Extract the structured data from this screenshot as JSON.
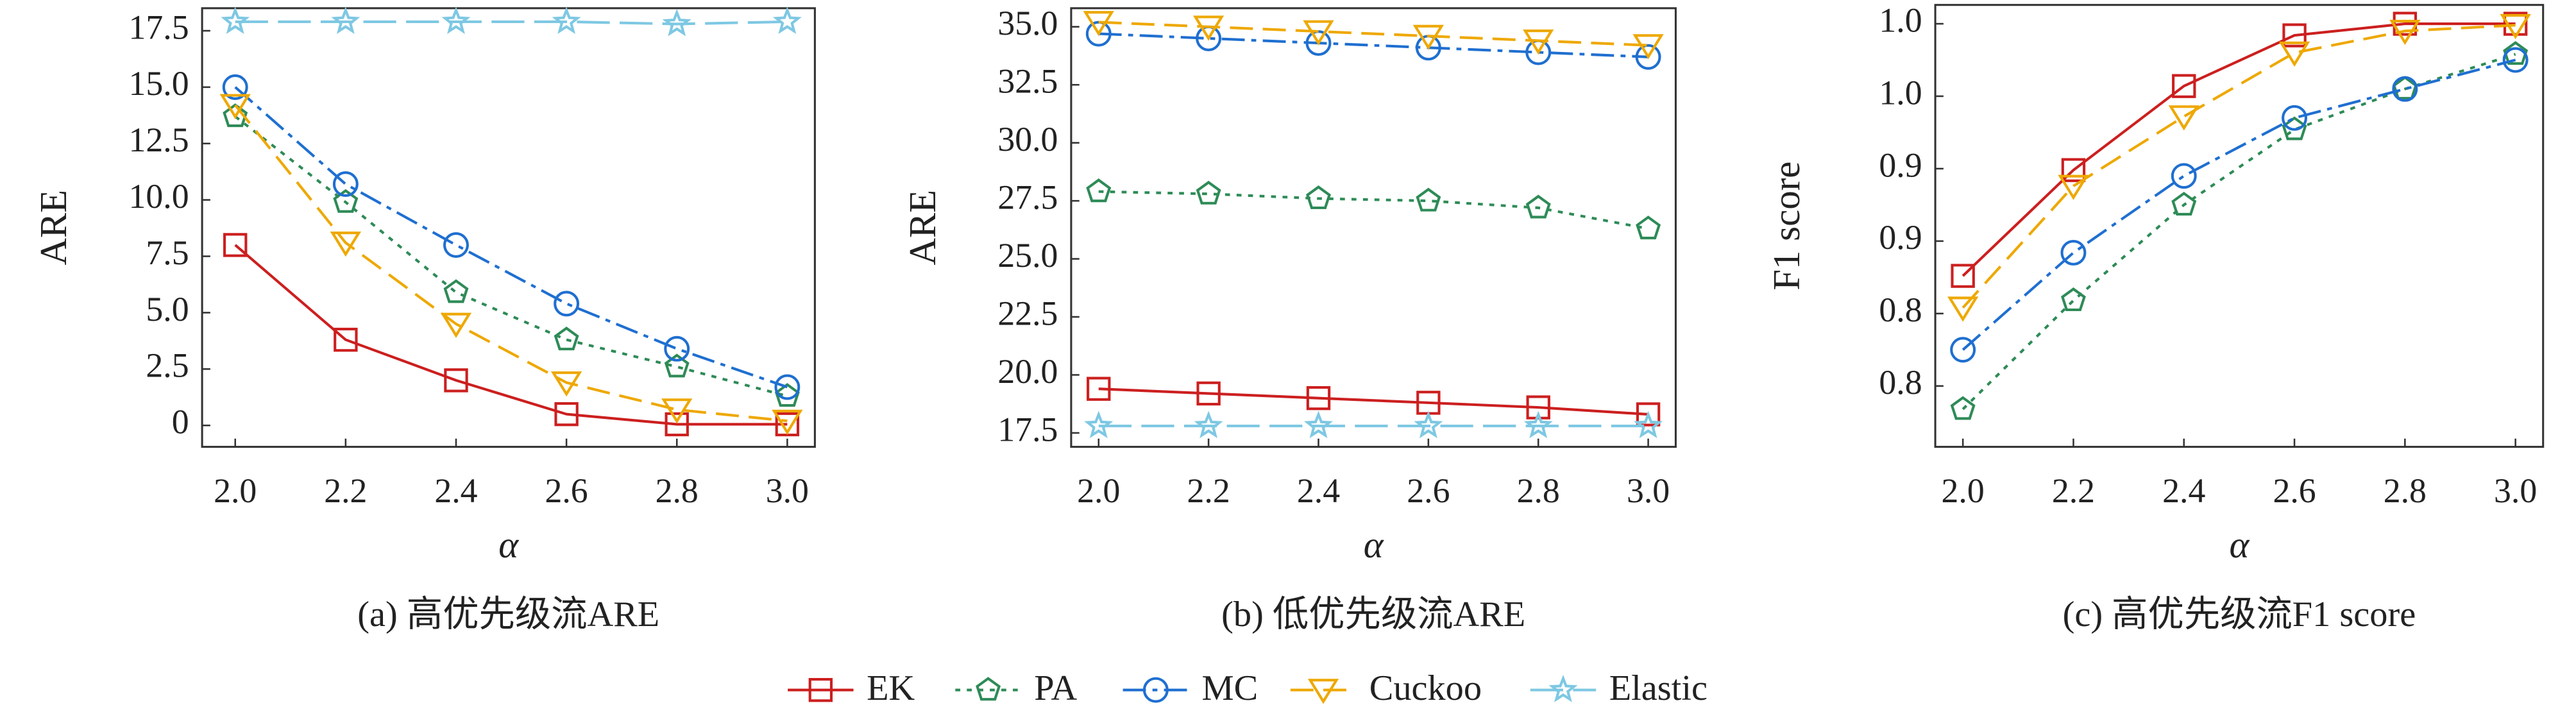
{
  "chart_data": [
    {
      "type": "line",
      "caption": "(a) 高优先级流ARE",
      "ylabel": "ARE",
      "xlabel": "α",
      "x": [
        2.0,
        2.2,
        2.4,
        2.6,
        2.8,
        3.0
      ],
      "xlim": [
        1.94,
        3.05
      ],
      "xticks": [
        {
          "value": 2.0,
          "label": "2.0"
        },
        {
          "value": 2.2,
          "label": "2.2"
        },
        {
          "value": 2.4,
          "label": "2.4"
        },
        {
          "value": 2.6,
          "label": "2.6"
        },
        {
          "value": 2.8,
          "label": "2.8"
        },
        {
          "value": 3.0,
          "label": "3.0"
        }
      ],
      "ylim": [
        -0.95,
        18.5
      ],
      "yticks": [
        0,
        2.5,
        {
          "value": 5,
          "label": "5.0"
        },
        7.5,
        {
          "value": 10,
          "label": "10.0"
        },
        12.5,
        {
          "value": 15,
          "label": "15.0"
        },
        17.5
      ],
      "series": [
        {
          "name": "EK",
          "color": "#cc1f1f",
          "linestyle": "solid",
          "marker": "square",
          "values": [
            8.0,
            3.8,
            2.0,
            0.5,
            0.05,
            0.05
          ]
        },
        {
          "name": "PA",
          "color": "#2e8b57",
          "linestyle": "dotted",
          "marker": "pentagon",
          "values": [
            13.7,
            9.9,
            5.9,
            3.8,
            2.6,
            1.3
          ]
        },
        {
          "name": "MC",
          "color": "#1f6fd0",
          "linestyle": "dashdot",
          "marker": "circle",
          "values": [
            15.0,
            10.7,
            8.0,
            5.4,
            3.4,
            1.7
          ]
        },
        {
          "name": "Cuckoo",
          "color": "#eea800",
          "linestyle": "dashed",
          "marker": "triangle-down",
          "values": [
            14.2,
            8.1,
            4.5,
            1.9,
            0.7,
            0.2
          ]
        },
        {
          "name": "Elastic",
          "color": "#7ec8e3",
          "linestyle": "longdash",
          "marker": "star",
          "values": [
            17.9,
            17.9,
            17.9,
            17.9,
            17.8,
            17.9
          ]
        }
      ]
    },
    {
      "type": "line",
      "caption": "(b) 低优先级流ARE",
      "ylabel": "ARE",
      "xlabel": "α",
      "x": [
        2.0,
        2.2,
        2.4,
        2.6,
        2.8,
        3.0
      ],
      "xlim": [
        1.95,
        3.05
      ],
      "xticks": [
        {
          "value": 2.0,
          "label": "2.0"
        },
        {
          "value": 2.2,
          "label": "2.2"
        },
        {
          "value": 2.4,
          "label": "2.4"
        },
        {
          "value": 2.6,
          "label": "2.6"
        },
        {
          "value": 2.8,
          "label": "2.8"
        },
        {
          "value": 3.0,
          "label": "3.0"
        }
      ],
      "ylim": [
        16.9,
        35.8
      ],
      "yticks": [
        17.5,
        {
          "value": 20,
          "label": "20.0"
        },
        22.5,
        {
          "value": 25,
          "label": "25.0"
        },
        27.5,
        {
          "value": 30,
          "label": "30.0"
        },
        32.5,
        {
          "value": 35,
          "label": "35.0"
        }
      ],
      "series": [
        {
          "name": "EK",
          "color": "#cc1f1f",
          "linestyle": "solid",
          "marker": "square",
          "values": [
            19.4,
            19.2,
            19.0,
            18.8,
            18.6,
            18.3
          ]
        },
        {
          "name": "PA",
          "color": "#2e8b57",
          "linestyle": "dotted",
          "marker": "pentagon",
          "values": [
            27.9,
            27.8,
            27.6,
            27.5,
            27.2,
            26.3
          ]
        },
        {
          "name": "MC",
          "color": "#1f6fd0",
          "linestyle": "dashdot",
          "marker": "circle",
          "values": [
            34.7,
            34.5,
            34.3,
            34.1,
            33.9,
            33.7
          ]
        },
        {
          "name": "Cuckoo",
          "color": "#eea800",
          "linestyle": "dashed",
          "marker": "triangle-down",
          "values": [
            35.2,
            35.0,
            34.8,
            34.6,
            34.4,
            34.2
          ]
        },
        {
          "name": "Elastic",
          "color": "#7ec8e3",
          "linestyle": "longdash",
          "marker": "star",
          "values": [
            17.8,
            17.8,
            17.8,
            17.8,
            17.8,
            17.8
          ]
        }
      ]
    },
    {
      "type": "line",
      "caption": "(c) 高优先级流F1 score",
      "ylabel": "F1 score",
      "xlabel": "α",
      "x": [
        2.0,
        2.2,
        2.4,
        2.6,
        2.8,
        3.0
      ],
      "xlim": [
        1.95,
        3.05
      ],
      "xticks": [
        {
          "value": 2.0,
          "label": "2.0"
        },
        {
          "value": 2.2,
          "label": "2.2"
        },
        {
          "value": 2.4,
          "label": "2.4"
        },
        {
          "value": 2.6,
          "label": "2.6"
        },
        {
          "value": 2.8,
          "label": "2.8"
        },
        {
          "value": 3.0,
          "label": "3.0"
        }
      ],
      "ylim": [
        0.708,
        1.013
      ],
      "yticks": [
        {
          "value": 0.75,
          "label": "0.8"
        },
        {
          "value": 0.8,
          "label": "0.8"
        },
        {
          "value": 0.85,
          "label": "0.9"
        },
        {
          "value": 0.9,
          "label": "0.9"
        },
        {
          "value": 0.95,
          "label": "1.0"
        },
        {
          "value": 1.0,
          "label": "1.0"
        }
      ],
      "series": [
        {
          "name": "EK",
          "color": "#cc1f1f",
          "linestyle": "solid",
          "marker": "square",
          "values": [
            0.826,
            0.899,
            0.957,
            0.992,
            1.0,
            1.0
          ]
        },
        {
          "name": "PA",
          "color": "#2e8b57",
          "linestyle": "dotted",
          "marker": "pentagon",
          "values": [
            0.734,
            0.809,
            0.875,
            0.927,
            0.955,
            0.979
          ]
        },
        {
          "name": "MC",
          "color": "#1f6fd0",
          "linestyle": "dashdot",
          "marker": "circle",
          "values": [
            0.775,
            0.842,
            0.895,
            0.935,
            0.955,
            0.975
          ]
        },
        {
          "name": "Cuckoo",
          "color": "#eea800",
          "linestyle": "dashed",
          "marker": "triangle-down",
          "values": [
            0.804,
            0.888,
            0.936,
            0.98,
            0.995,
            0.999
          ]
        }
      ]
    }
  ]
}
